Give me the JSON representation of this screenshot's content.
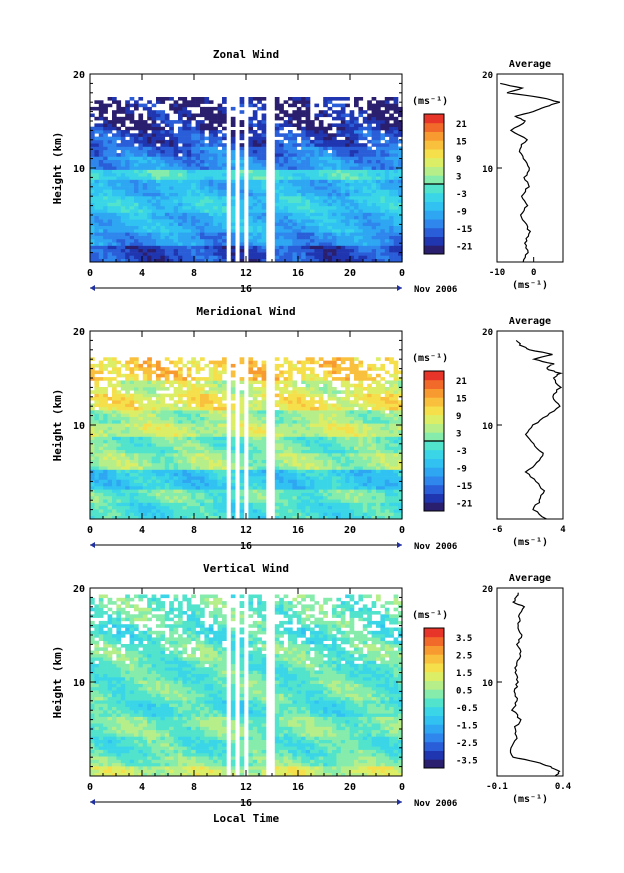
{
  "x_axis": {
    "label": "Local Time",
    "ticks": [
      "0",
      "4",
      "8",
      "12",
      "16",
      "20",
      "0"
    ],
    "day_label": "16",
    "month_year": "Nov 2006"
  },
  "y_axis": {
    "label": "Height (km)",
    "ticks": [
      "10",
      "20"
    ]
  },
  "colorbar_unit": "(ms⁻¹)",
  "average_title": "Average",
  "average_unit": "(ms⁻¹)",
  "palette": [
    "#2a1f6e",
    "#2036b0",
    "#2a5ed8",
    "#2f86ec",
    "#2ea6f2",
    "#31c2f2",
    "#3ad6e8",
    "#52e3cc",
    "#86ecac",
    "#b6ee8a",
    "#dcee66",
    "#f5e04c",
    "#f8c03c",
    "#f79a30",
    "#f26a2a",
    "#e8352a"
  ],
  "chart_data": [
    {
      "type": "heatmap",
      "title": "Zonal Wind",
      "xlabel": "Local Time",
      "ylabel": "Height (km)",
      "xlim": [
        0,
        24
      ],
      "ylim": [
        0,
        20
      ],
      "colorbar": {
        "ticks": [
          "21",
          "15",
          "9",
          "3",
          "-3",
          "-9",
          "-15",
          "-21"
        ],
        "range": [
          -24,
          24
        ],
        "zero_line": true
      },
      "data_top_km": 17.5,
      "gaps_hours": [
        [
          10.3,
          10.6
        ],
        [
          11.0,
          11.3
        ],
        [
          11.8,
          12.1
        ],
        [
          13.5,
          13.9
        ]
      ],
      "field_levels": [
        [
          1.5,
          -18
        ],
        [
          3,
          -12
        ],
        [
          5,
          -9
        ],
        [
          7,
          -6
        ],
        [
          8.5,
          -9
        ],
        [
          9.5,
          -3
        ],
        [
          11,
          -12
        ],
        [
          12,
          -15
        ],
        [
          14,
          -18
        ],
        [
          16,
          -21
        ]
      ],
      "average_profile": {
        "xlim": [
          -10,
          8
        ],
        "xticks": [
          "-10",
          "0"
        ],
        "height_km": [
          0,
          1,
          2,
          3,
          4,
          5,
          6,
          7,
          8,
          9,
          10,
          11,
          12,
          13,
          14,
          15,
          15.5,
          16,
          16.5,
          17,
          17.5,
          18,
          18.5,
          19
        ],
        "value": [
          -3,
          -1.5,
          -2.5,
          -1,
          -2,
          -3.5,
          -2,
          -3,
          -1.5,
          -2.5,
          -1,
          -2.5,
          -4,
          -2,
          -6,
          -2,
          -5,
          0,
          3,
          7,
          2,
          -7,
          -3,
          -9
        ]
      }
    },
    {
      "type": "heatmap",
      "title": "Meridional Wind",
      "xlabel": "Local Time",
      "ylabel": "Height (km)",
      "xlim": [
        0,
        24
      ],
      "ylim": [
        0,
        20
      ],
      "colorbar": {
        "ticks": [
          "21",
          "15",
          "9",
          "3",
          "-3",
          "-9",
          "-15",
          "-21"
        ],
        "range": [
          -24,
          24
        ],
        "zero_line": true
      },
      "data_top_km": 17,
      "gaps_hours": [
        [
          10.3,
          10.6
        ],
        [
          11.0,
          11.3
        ],
        [
          11.8,
          12.1
        ],
        [
          13.5,
          13.9
        ]
      ],
      "field_levels": [
        [
          1.5,
          -3
        ],
        [
          3,
          0
        ],
        [
          5,
          -6
        ],
        [
          7,
          3
        ],
        [
          8.5,
          0
        ],
        [
          10,
          6
        ],
        [
          11.5,
          3
        ],
        [
          13,
          9
        ],
        [
          14.5,
          6
        ],
        [
          16,
          12
        ]
      ],
      "average_profile": {
        "xlim": [
          -6,
          4
        ],
        "xticks": [
          "-6",
          "4"
        ],
        "height_km": [
          0,
          1,
          2,
          3,
          4,
          5,
          6,
          7,
          8,
          9,
          10,
          11,
          12,
          13,
          14,
          15,
          15.5,
          16,
          16.5,
          17,
          17.5,
          18,
          18.5,
          19
        ],
        "value": [
          1.5,
          -0.5,
          0.5,
          1,
          0,
          -1.5,
          0,
          1,
          -0.5,
          -1.5,
          -0.5,
          1.5,
          3.5,
          2.5,
          3.5,
          2.5,
          3.5,
          1.5,
          2.5,
          -0.5,
          2.5,
          -1,
          -2.5,
          -3
        ]
      }
    },
    {
      "type": "heatmap",
      "title": "Vertical Wind",
      "xlabel": "Local Time",
      "ylabel": "Height (km)",
      "xlim": [
        0,
        24
      ],
      "ylim": [
        0,
        20
      ],
      "colorbar": {
        "ticks": [
          "3.5",
          "2.5",
          "1.5",
          "0.5",
          "-0.5",
          "-1.5",
          "-2.5",
          "-3.5"
        ],
        "range": [
          -4,
          4
        ],
        "zero_line": false
      },
      "data_top_km": 19,
      "gaps_hours": [
        [
          10.3,
          10.6
        ],
        [
          11.0,
          11.3
        ],
        [
          11.8,
          12.1
        ],
        [
          13.5,
          13.9
        ]
      ],
      "field_levels": [
        [
          0.8,
          1.0
        ],
        [
          2,
          0.2
        ],
        [
          4,
          -0.2
        ],
        [
          6,
          0.2
        ],
        [
          8,
          -0.4
        ],
        [
          10,
          0
        ],
        [
          12,
          -0.2
        ],
        [
          14,
          0.1
        ],
        [
          16,
          -0.3
        ],
        [
          19,
          0
        ]
      ],
      "average_profile": {
        "xlim": [
          -0.1,
          0.4
        ],
        "xticks": [
          "-0.1",
          "0.4"
        ],
        "height_km": [
          0,
          0.5,
          1,
          1.5,
          2,
          3,
          4,
          5,
          6,
          7,
          8,
          9,
          10,
          11,
          12,
          13,
          14,
          15,
          16,
          17,
          18,
          18.5,
          19,
          19.5
        ],
        "value": [
          0.35,
          0.38,
          0.3,
          0.2,
          0.02,
          0,
          0.05,
          0.03,
          0.08,
          0.02,
          0.05,
          0.03,
          0.06,
          0.04,
          0.05,
          0.08,
          0.05,
          0.09,
          0.06,
          0.07,
          0.1,
          0.03,
          0.04,
          0.06
        ]
      }
    }
  ]
}
